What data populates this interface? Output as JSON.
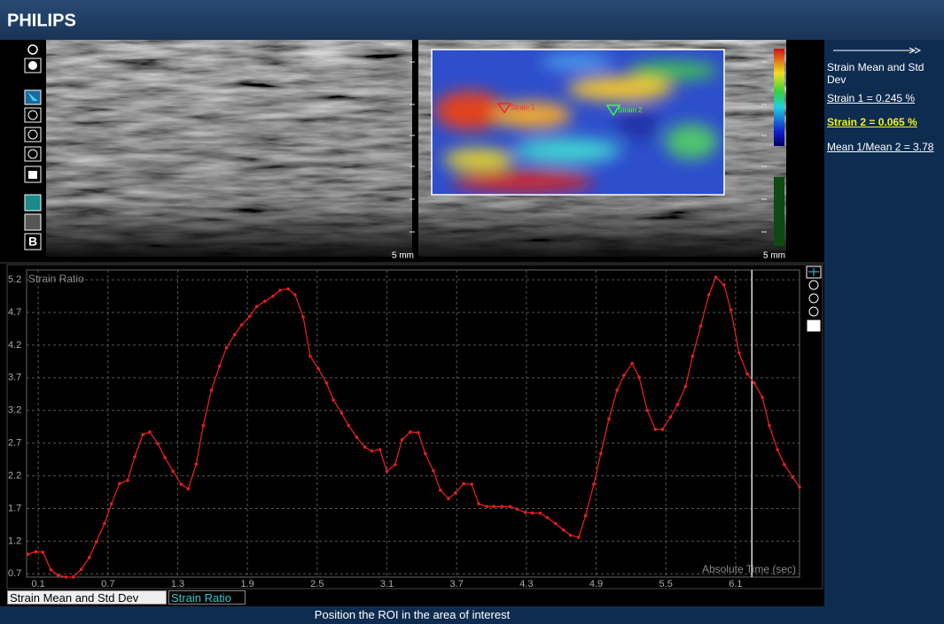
{
  "header": {
    "brand": "PHILIPS"
  },
  "images": {
    "left_scale": "5 mm",
    "right_scale": "5 mm",
    "roi_1": "Strain 1",
    "roi_2": "Strain 2"
  },
  "side_panel": {
    "title": "Strain Mean and Std Dev",
    "strain_1": "Strain 1 = 0.245 %",
    "strain_2": "Strain 2 = 0.065 %",
    "ratio": "Mean 1/Mean 2 = 3.78"
  },
  "chart_data": {
    "type": "line",
    "title": "Strain Ratio",
    "x_label": "Absolute Time (sec)",
    "color": "#e02020",
    "grid": true,
    "xlim": [
      0,
      6.65
    ],
    "ylim": [
      0.65,
      5.35
    ],
    "xticks": [
      0.1,
      0.7,
      1.3,
      1.9,
      2.5,
      3.1,
      3.7,
      4.3,
      4.9,
      5.5,
      6.1
    ],
    "yticks": [
      0.7,
      1.2,
      1.7,
      2.2,
      2.7,
      3.2,
      3.7,
      4.2,
      4.7,
      5.2
    ],
    "cursor_x": 6.24,
    "x": [
      0.01,
      0.08,
      0.14,
      0.21,
      0.27,
      0.34,
      0.4,
      0.47,
      0.54,
      0.6,
      0.67,
      0.73,
      0.8,
      0.87,
      0.93,
      1.0,
      1.06,
      1.13,
      1.19,
      1.26,
      1.33,
      1.39,
      1.46,
      1.52,
      1.59,
      1.66,
      1.72,
      1.79,
      1.85,
      1.92,
      1.98,
      2.05,
      2.12,
      2.18,
      2.25,
      2.31,
      2.38,
      2.44,
      2.51,
      2.58,
      2.64,
      2.71,
      2.77,
      2.84,
      2.91,
      2.97,
      3.04,
      3.1,
      3.17,
      3.23,
      3.3,
      3.37,
      3.43,
      3.5,
      3.56,
      3.63,
      3.69,
      3.76,
      3.83,
      3.89,
      3.96,
      4.02,
      4.09,
      4.16,
      4.22,
      4.29,
      4.35,
      4.42,
      4.48,
      4.55,
      4.62,
      4.68,
      4.75,
      4.81,
      4.88,
      4.94,
      5.01,
      5.08,
      5.14,
      5.21,
      5.27,
      5.34,
      5.41,
      5.47,
      5.54,
      5.6,
      5.67,
      5.73,
      5.8,
      5.87,
      5.93,
      6.0,
      6.06,
      6.13,
      6.2,
      6.26,
      6.33,
      6.39,
      6.46,
      6.52,
      6.59,
      6.65
    ],
    "values": [
      1.0,
      1.04,
      1.03,
      0.76,
      0.68,
      0.65,
      0.65,
      0.77,
      0.95,
      1.19,
      1.47,
      1.77,
      2.08,
      2.13,
      2.49,
      2.83,
      2.87,
      2.69,
      2.48,
      2.27,
      2.07,
      2.0,
      2.38,
      2.97,
      3.51,
      3.88,
      4.16,
      4.36,
      4.51,
      4.64,
      4.79,
      4.87,
      4.95,
      5.04,
      5.06,
      4.97,
      4.63,
      4.03,
      3.84,
      3.62,
      3.36,
      3.16,
      2.97,
      2.79,
      2.64,
      2.58,
      2.6,
      2.27,
      2.37,
      2.75,
      2.87,
      2.86,
      2.54,
      2.28,
      1.98,
      1.85,
      1.94,
      2.08,
      2.07,
      1.77,
      1.73,
      1.73,
      1.73,
      1.73,
      1.69,
      1.64,
      1.63,
      1.63,
      1.56,
      1.47,
      1.37,
      1.29,
      1.26,
      1.59,
      2.07,
      2.54,
      3.07,
      3.51,
      3.74,
      3.92,
      3.71,
      3.2,
      2.91,
      2.91,
      3.1,
      3.29,
      3.57,
      4.03,
      4.49,
      4.97,
      5.24,
      5.12,
      4.74,
      4.08,
      3.76,
      3.62,
      3.4,
      2.97,
      2.6,
      2.37,
      2.18,
      2.03
    ]
  },
  "tabs": [
    "Strain Mean and Std Dev",
    "Strain Ratio"
  ],
  "status": "Position the ROI in the area of interest"
}
